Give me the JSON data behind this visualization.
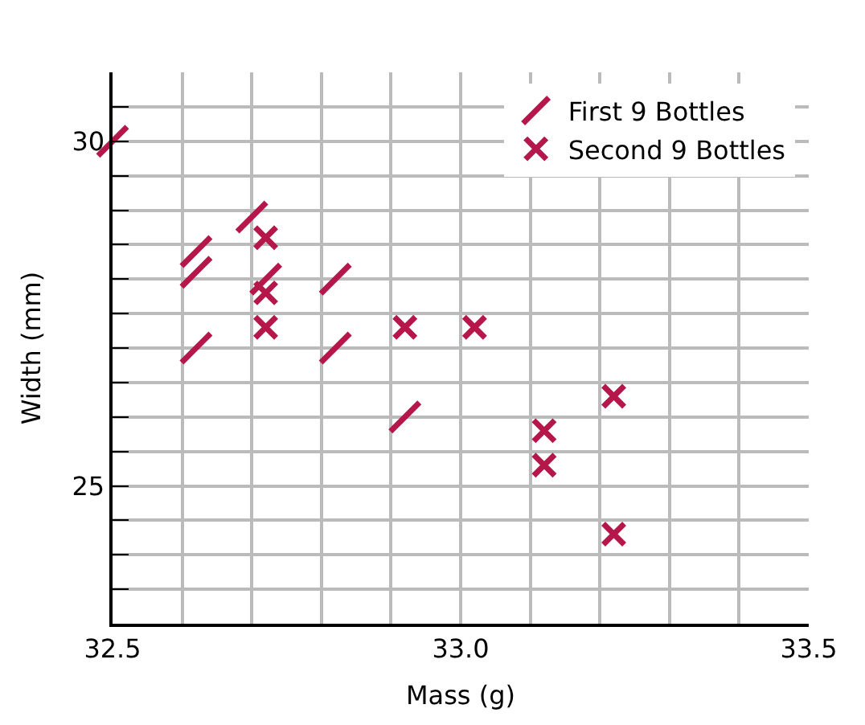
{
  "chart_data": {
    "type": "scatter",
    "xlabel": "Mass (g)",
    "ylabel": "Width (mm)",
    "series": [
      {
        "name": "First 9 Bottles",
        "color": "#b5174b",
        "x": [
          32.5,
          32.7,
          32.62,
          32.62,
          32.72,
          32.82,
          32.62,
          32.82,
          32.92
        ],
        "values": [
          30.0,
          28.9,
          28.4,
          28.1,
          28.0,
          28.0,
          27.0,
          27.0,
          26.0
        ]
      },
      {
        "name": "Second 9 Bottles",
        "color": "#b5174b",
        "marker": "cross",
        "x": [
          32.72,
          32.72,
          32.72,
          32.92,
          33.02,
          33.22,
          33.12,
          33.12,
          33.22
        ],
        "values": [
          28.6,
          27.8,
          27.3,
          27.3,
          27.3,
          26.3,
          25.8,
          25.3,
          24.3
        ]
      }
    ],
    "xlim": [
      32.5,
      33.5
    ],
    "xticks": [
      32.5,
      {
        "value": 32.6,
        "label": null
      },
      {
        "value": 32.7,
        "label": null
      },
      {
        "value": 32.8,
        "label": null
      },
      {
        "value": 32.9,
        "label": null
      },
      {
        "value": 33,
        "label": "33.0"
      },
      {
        "value": 33.1,
        "label": null
      },
      {
        "value": 33.2,
        "label": null
      },
      {
        "value": 33.3,
        "label": null
      },
      {
        "value": 33.4,
        "label": null
      },
      33.5
    ],
    "ylim": [
      23,
      31
    ],
    "yticks": [
      {
        "value": 23.5,
        "label": null
      },
      {
        "value": 24,
        "label": null
      },
      {
        "value": 24.5,
        "label": null
      },
      25,
      {
        "value": 25.5,
        "label": null
      },
      {
        "value": 26,
        "label": null
      },
      {
        "value": 26.5,
        "label": null
      },
      {
        "value": 27,
        "label": null
      },
      {
        "value": 27.5,
        "label": null
      },
      {
        "value": 28,
        "label": null
      },
      {
        "value": 28.5,
        "label": null
      },
      {
        "value": 29,
        "label": null
      },
      {
        "value": 29.5,
        "label": null
      },
      30,
      {
        "value": 30.5,
        "label": null
      }
    ],
    "grid": true,
    "legend": "top right"
  }
}
